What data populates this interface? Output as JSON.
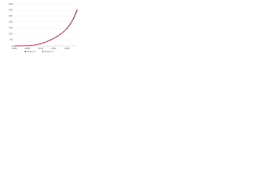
{
  "chart_data": {
    "type": "line",
    "x": [
      "2004",
      "2005",
      "2006",
      "2007",
      "2008",
      "2009",
      "2010",
      "2011",
      "2012",
      "2013",
      "2014",
      "2015",
      "2016",
      "2017",
      "2018",
      "2019",
      "2020",
      "2021",
      "2022",
      "2023"
    ],
    "series": [
      {
        "name": "Series 1",
        "color": "#1f3e7a",
        "values": [
          0,
          0,
          1,
          1,
          2,
          4,
          7,
          12,
          19,
          28,
          38,
          50,
          64,
          80,
          98,
          120,
          148,
          185,
          235,
          300
        ]
      },
      {
        "name": "Series 2",
        "color": "#d62f3c",
        "values": [
          0,
          0,
          0,
          1,
          2,
          3,
          6,
          11,
          18,
          26,
          36,
          48,
          62,
          78,
          96,
          118,
          145,
          180,
          228,
          290
        ]
      }
    ],
    "ylim": [
      0,
      350
    ],
    "yticks": [
      0,
      50,
      100,
      150,
      200,
      250,
      300,
      350
    ],
    "grid": true
  }
}
